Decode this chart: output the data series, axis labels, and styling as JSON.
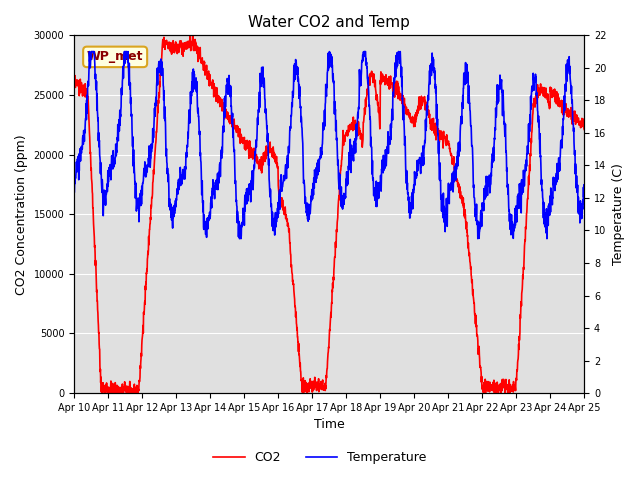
{
  "title": "Water CO2 and Temp",
  "xlabel": "Time",
  "ylabel_left": "CO2 Concentration (ppm)",
  "ylabel_right": "Temperature (C)",
  "annotation": "WP_met",
  "x_tick_labels": [
    "Apr 10",
    "Apr 11",
    "Apr 12",
    "Apr 13",
    "Apr 14",
    "Apr 15",
    "Apr 16",
    "Apr 17",
    "Apr 18",
    "Apr 19",
    "Apr 20",
    "Apr 21",
    "Apr 22",
    "Apr 23",
    "Apr 24",
    "Apr 25"
  ],
  "co2_color": "red",
  "temp_color": "blue",
  "plot_bg_color": "#e0e0e0",
  "fig_bg_color": "#ffffff",
  "ylim_co2": [
    0,
    30000
  ],
  "ylim_temp": [
    0,
    22
  ],
  "legend_co2": "CO2",
  "legend_temp": "Temperature",
  "co2_yticks": [
    0,
    5000,
    10000,
    15000,
    20000,
    25000,
    30000
  ],
  "temp_yticks": [
    0,
    2,
    4,
    6,
    8,
    10,
    12,
    14,
    16,
    18,
    20,
    22
  ],
  "title_fontsize": 11,
  "label_fontsize": 9,
  "tick_fontsize": 7,
  "linewidth": 1.2
}
